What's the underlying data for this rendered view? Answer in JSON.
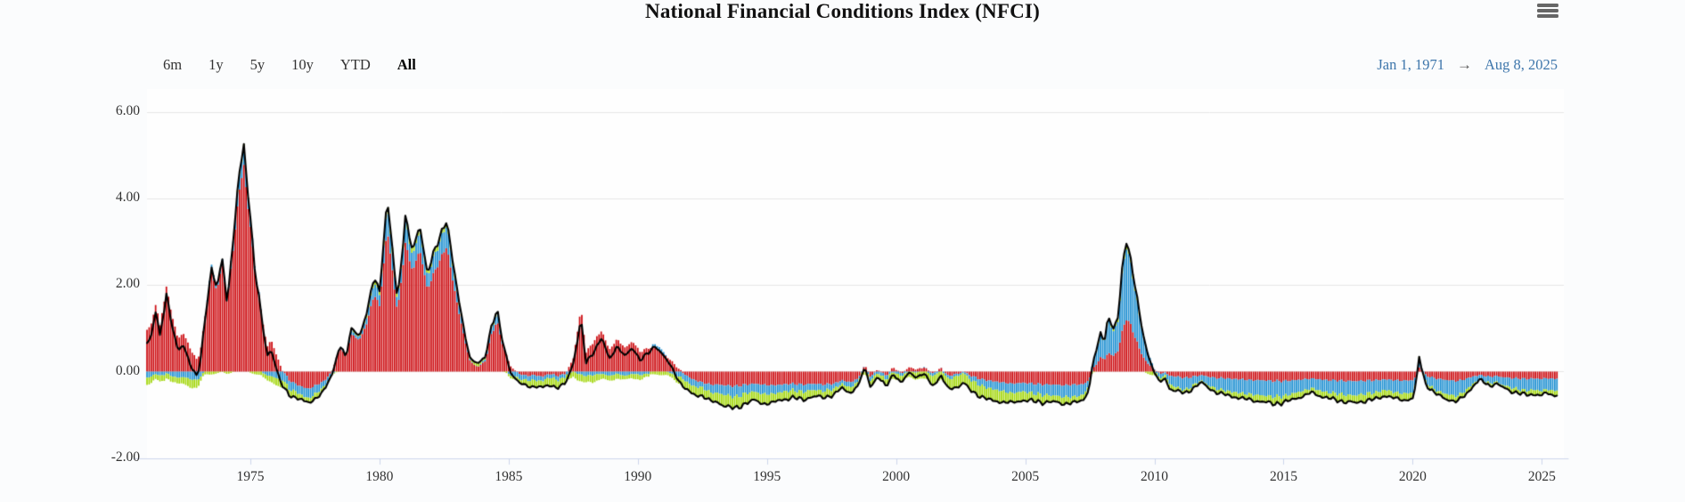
{
  "title": "National Financial Conditions Index (NFCI)",
  "menu": {
    "icon": "hamburger-icon"
  },
  "range_selector": {
    "buttons": [
      {
        "label": "6m",
        "selected": false
      },
      {
        "label": "1y",
        "selected": false
      },
      {
        "label": "5y",
        "selected": false
      },
      {
        "label": "10y",
        "selected": false
      },
      {
        "label": "YTD",
        "selected": false
      },
      {
        "label": "All",
        "selected": true
      }
    ]
  },
  "date_range": {
    "from": "Jan 1, 1971",
    "arrow": "→",
    "to": "Aug 8, 2025"
  },
  "colors": {
    "credit": "#cc0b10",
    "risk": "#1d8fd1",
    "leverage": "#a2d60a",
    "nfci_line": "#000000",
    "gridline": "#e6e6e6",
    "axis_line": "#ccd6eb",
    "label_text": "#333333",
    "date_text": "#3e76ab"
  },
  "chart_data": {
    "type": "area",
    "variant": "stacked-weekly-columns-with-total-line",
    "title": "National Financial Conditions Index (NFCI)",
    "xlabel": "",
    "ylabel": "",
    "legend": "none",
    "grid": true,
    "x_axis": {
      "min": 1971.0,
      "max": 2025.85,
      "tick_labels": [
        "1975",
        "1980",
        "1985",
        "1990",
        "1995",
        "2000",
        "2005",
        "2010",
        "2015",
        "2020",
        "2025"
      ],
      "tick_years": [
        1975,
        1980,
        1985,
        1990,
        1995,
        2000,
        2005,
        2010,
        2015,
        2020,
        2025
      ]
    },
    "y_axis": {
      "min": -2.0,
      "max": 6.42,
      "tick_labels": [
        "6.00",
        "4.00",
        "2.00",
        "0.00",
        "-2.00"
      ],
      "tick_values": [
        6,
        4,
        2,
        0,
        -2
      ]
    },
    "series_order_note": "stacked columns: credit (red) first, then risk (blue), then leverage (green); black line = NFCI total (sum of the three contributions)",
    "components": [
      "credit",
      "risk",
      "leverage"
    ],
    "keypoints_format": [
      "year",
      "credit",
      "risk",
      "leverage"
    ],
    "keypoints": [
      [
        1971.0,
        0.95,
        -0.15,
        -0.15
      ],
      [
        1971.2,
        1.15,
        -0.1,
        -0.15
      ],
      [
        1971.35,
        1.6,
        -0.05,
        -0.12
      ],
      [
        1971.5,
        1.05,
        -0.1,
        -0.15
      ],
      [
        1971.75,
        1.95,
        -0.05,
        -0.1
      ],
      [
        1971.95,
        1.35,
        -0.1,
        -0.12
      ],
      [
        1972.2,
        0.75,
        -0.15,
        -0.15
      ],
      [
        1972.4,
        0.9,
        -0.12,
        -0.15
      ],
      [
        1972.7,
        0.5,
        -0.18,
        -0.18
      ],
      [
        1972.95,
        0.25,
        -0.2,
        -0.2
      ],
      [
        1973.1,
        0.6,
        -0.1,
        -0.1
      ],
      [
        1973.3,
        1.5,
        0.05,
        -0.05
      ],
      [
        1973.5,
        2.3,
        0.15,
        -0.05
      ],
      [
        1973.7,
        1.85,
        0.1,
        -0.05
      ],
      [
        1973.9,
        2.5,
        0.15,
        -0.02
      ],
      [
        1974.1,
        1.6,
        0.05,
        -0.05
      ],
      [
        1974.3,
        2.6,
        0.2,
        0.0
      ],
      [
        1974.55,
        4.1,
        0.35,
        0.05
      ],
      [
        1974.75,
        4.75,
        0.4,
        0.05
      ],
      [
        1974.95,
        3.6,
        0.25,
        0.0
      ],
      [
        1975.2,
        2.2,
        0.1,
        -0.05
      ],
      [
        1975.45,
        1.3,
        0.0,
        -0.1
      ],
      [
        1975.65,
        0.55,
        -0.1,
        -0.12
      ],
      [
        1975.8,
        0.75,
        -0.1,
        -0.12
      ],
      [
        1976.0,
        0.4,
        -0.15,
        -0.15
      ],
      [
        1976.2,
        0.08,
        -0.2,
        -0.18
      ],
      [
        1976.5,
        -0.2,
        -0.2,
        -0.15
      ],
      [
        1976.8,
        -0.3,
        -0.18,
        -0.12
      ],
      [
        1977.0,
        -0.35,
        -0.2,
        -0.1
      ],
      [
        1977.25,
        -0.4,
        -0.22,
        -0.12
      ],
      [
        1977.6,
        -0.3,
        -0.18,
        -0.1
      ],
      [
        1977.9,
        -0.2,
        -0.12,
        -0.08
      ],
      [
        1978.2,
        0.05,
        -0.05,
        -0.02
      ],
      [
        1978.45,
        0.55,
        0.05,
        0.02
      ],
      [
        1978.7,
        0.35,
        0.0,
        0.0
      ],
      [
        1978.95,
        0.9,
        0.1,
        0.05
      ],
      [
        1979.2,
        0.7,
        0.05,
        0.05
      ],
      [
        1979.5,
        1.1,
        0.15,
        0.08
      ],
      [
        1979.8,
        1.8,
        0.3,
        0.1
      ],
      [
        1980.0,
        1.5,
        0.25,
        0.1
      ],
      [
        1980.3,
        3.3,
        0.55,
        0.15
      ],
      [
        1980.7,
        1.35,
        0.2,
        0.08
      ],
      [
        1981.0,
        2.95,
        0.5,
        0.12
      ],
      [
        1981.3,
        2.3,
        0.35,
        0.1
      ],
      [
        1981.55,
        2.85,
        0.45,
        0.12
      ],
      [
        1981.85,
        1.9,
        0.3,
        0.08
      ],
      [
        1982.2,
        2.4,
        0.4,
        0.1
      ],
      [
        1982.6,
        2.9,
        0.5,
        0.12
      ],
      [
        1982.9,
        1.9,
        0.3,
        0.08
      ],
      [
        1983.2,
        1.0,
        0.15,
        0.05
      ],
      [
        1983.5,
        0.25,
        0.02,
        0.05
      ],
      [
        1983.8,
        0.1,
        0.0,
        0.06
      ],
      [
        1984.1,
        0.25,
        0.05,
        0.06
      ],
      [
        1984.35,
        0.9,
        0.15,
        0.05
      ],
      [
        1984.55,
        1.15,
        0.2,
        0.05
      ],
      [
        1984.8,
        0.55,
        0.05,
        0.0
      ],
      [
        1985.1,
        0.1,
        -0.1,
        -0.05
      ],
      [
        1985.4,
        -0.05,
        -0.12,
        -0.1
      ],
      [
        1985.7,
        -0.1,
        -0.1,
        -0.12
      ],
      [
        1986.0,
        -0.08,
        -0.12,
        -0.15
      ],
      [
        1986.3,
        -0.12,
        -0.1,
        -0.15
      ],
      [
        1986.6,
        -0.05,
        -0.08,
        -0.17
      ],
      [
        1986.9,
        -0.1,
        -0.1,
        -0.18
      ],
      [
        1987.2,
        -0.05,
        -0.08,
        -0.15
      ],
      [
        1987.5,
        0.3,
        0.0,
        -0.1
      ],
      [
        1987.8,
        1.45,
        -0.08,
        -0.18
      ],
      [
        1988.0,
        0.45,
        -0.1,
        -0.15
      ],
      [
        1988.3,
        0.7,
        -0.08,
        -0.15
      ],
      [
        1988.6,
        0.95,
        -0.05,
        -0.12
      ],
      [
        1988.9,
        0.5,
        -0.1,
        -0.12
      ],
      [
        1989.2,
        0.75,
        -0.05,
        -0.1
      ],
      [
        1989.5,
        0.55,
        -0.1,
        -0.1
      ],
      [
        1989.8,
        0.7,
        -0.05,
        -0.1
      ],
      [
        1990.1,
        0.45,
        -0.08,
        -0.1
      ],
      [
        1990.4,
        0.55,
        -0.05,
        -0.08
      ],
      [
        1990.7,
        0.55,
        0.1,
        -0.05
      ],
      [
        1991.0,
        0.4,
        0.05,
        -0.08
      ],
      [
        1991.3,
        0.25,
        -0.05,
        -0.1
      ],
      [
        1991.6,
        0.05,
        -0.12,
        -0.15
      ],
      [
        1991.9,
        -0.1,
        -0.15,
        -0.18
      ],
      [
        1992.2,
        -0.2,
        -0.15,
        -0.2
      ],
      [
        1992.5,
        -0.25,
        -0.12,
        -0.18
      ],
      [
        1992.8,
        -0.3,
        -0.18,
        -0.2
      ],
      [
        1993.1,
        -0.3,
        -0.2,
        -0.22
      ],
      [
        1993.4,
        -0.32,
        -0.22,
        -0.25
      ],
      [
        1993.8,
        -0.34,
        -0.25,
        -0.27
      ],
      [
        1994.2,
        -0.3,
        -0.2,
        -0.22
      ],
      [
        1994.5,
        -0.28,
        -0.18,
        -0.2
      ],
      [
        1994.8,
        -0.3,
        -0.22,
        -0.22
      ],
      [
        1995.2,
        -0.32,
        -0.2,
        -0.2
      ],
      [
        1995.6,
        -0.3,
        -0.17,
        -0.18
      ],
      [
        1996.0,
        -0.28,
        -0.15,
        -0.17
      ],
      [
        1996.4,
        -0.3,
        -0.17,
        -0.18
      ],
      [
        1996.8,
        -0.28,
        -0.14,
        -0.15
      ],
      [
        1997.2,
        -0.3,
        -0.15,
        -0.15
      ],
      [
        1997.6,
        -0.28,
        -0.12,
        -0.13
      ],
      [
        1997.9,
        -0.2,
        -0.08,
        -0.1
      ],
      [
        1998.2,
        -0.25,
        -0.12,
        -0.12
      ],
      [
        1998.5,
        -0.18,
        -0.08,
        -0.1
      ],
      [
        1998.8,
        0.15,
        0.02,
        -0.08
      ],
      [
        1999.0,
        -0.12,
        -0.1,
        -0.12
      ],
      [
        1999.3,
        0.05,
        -0.05,
        -0.12
      ],
      [
        1999.6,
        -0.1,
        -0.1,
        -0.15
      ],
      [
        1999.9,
        0.1,
        -0.02,
        -0.12
      ],
      [
        2000.2,
        -0.05,
        -0.08,
        -0.15
      ],
      [
        2000.5,
        0.1,
        0.0,
        -0.12
      ],
      [
        2000.8,
        0.05,
        -0.02,
        -0.15
      ],
      [
        2001.1,
        0.1,
        0.02,
        -0.18
      ],
      [
        2001.4,
        -0.05,
        -0.08,
        -0.2
      ],
      [
        2001.75,
        0.08,
        0.0,
        -0.18
      ],
      [
        2002.0,
        -0.1,
        -0.08,
        -0.22
      ],
      [
        2002.4,
        -0.05,
        -0.05,
        -0.25
      ],
      [
        2002.6,
        0.0,
        -0.03,
        -0.22
      ],
      [
        2002.9,
        -0.1,
        -0.1,
        -0.25
      ],
      [
        2003.3,
        -0.18,
        -0.15,
        -0.25
      ],
      [
        2003.7,
        -0.22,
        -0.18,
        -0.27
      ],
      [
        2004.1,
        -0.25,
        -0.2,
        -0.25
      ],
      [
        2004.5,
        -0.28,
        -0.22,
        -0.22
      ],
      [
        2004.9,
        -0.26,
        -0.2,
        -0.2
      ],
      [
        2005.3,
        -0.28,
        -0.22,
        -0.18
      ],
      [
        2005.7,
        -0.3,
        -0.24,
        -0.17
      ],
      [
        2006.1,
        -0.3,
        -0.25,
        -0.15
      ],
      [
        2006.5,
        -0.32,
        -0.27,
        -0.15
      ],
      [
        2006.9,
        -0.3,
        -0.28,
        -0.14
      ],
      [
        2007.2,
        -0.3,
        -0.25,
        -0.12
      ],
      [
        2007.45,
        -0.22,
        -0.15,
        -0.1
      ],
      [
        2007.6,
        0.05,
        0.15,
        -0.05
      ],
      [
        2007.75,
        0.15,
        0.3,
        0.0
      ],
      [
        2007.9,
        0.35,
        0.55,
        0.05
      ],
      [
        2008.05,
        0.25,
        0.35,
        0.02
      ],
      [
        2008.2,
        0.45,
        0.8,
        0.08
      ],
      [
        2008.4,
        0.35,
        0.55,
        0.05
      ],
      [
        2008.6,
        0.5,
        0.7,
        0.08
      ],
      [
        2008.75,
        0.9,
        1.3,
        0.12
      ],
      [
        2008.9,
        1.25,
        1.7,
        0.15
      ],
      [
        2009.05,
        1.1,
        1.45,
        0.12
      ],
      [
        2009.2,
        0.9,
        1.2,
        0.1
      ],
      [
        2009.4,
        0.55,
        0.8,
        0.05
      ],
      [
        2009.6,
        0.3,
        0.45,
        0.0
      ],
      [
        2009.8,
        0.15,
        0.2,
        -0.05
      ],
      [
        2010.0,
        0.05,
        0.02,
        -0.08
      ],
      [
        2010.2,
        -0.05,
        -0.12,
        -0.1
      ],
      [
        2010.4,
        -0.02,
        -0.05,
        -0.08
      ],
      [
        2010.6,
        -0.1,
        -0.2,
        -0.1
      ],
      [
        2010.9,
        -0.12,
        -0.25,
        -0.08
      ],
      [
        2011.2,
        -0.15,
        -0.28,
        -0.08
      ],
      [
        2011.5,
        -0.12,
        -0.2,
        -0.06
      ],
      [
        2011.8,
        -0.08,
        -0.12,
        -0.05
      ],
      [
        2012.1,
        -0.12,
        -0.2,
        -0.06
      ],
      [
        2012.4,
        -0.15,
        -0.25,
        -0.08
      ],
      [
        2012.7,
        -0.15,
        -0.28,
        -0.1
      ],
      [
        2013.0,
        -0.17,
        -0.3,
        -0.1
      ],
      [
        2013.4,
        -0.18,
        -0.32,
        -0.12
      ],
      [
        2013.8,
        -0.2,
        -0.33,
        -0.13
      ],
      [
        2014.2,
        -0.2,
        -0.35,
        -0.15
      ],
      [
        2014.6,
        -0.22,
        -0.36,
        -0.16
      ],
      [
        2015.0,
        -0.22,
        -0.35,
        -0.15
      ],
      [
        2015.4,
        -0.2,
        -0.3,
        -0.13
      ],
      [
        2015.8,
        -0.18,
        -0.26,
        -0.12
      ],
      [
        2016.1,
        -0.16,
        -0.22,
        -0.1
      ],
      [
        2016.4,
        -0.18,
        -0.26,
        -0.12
      ],
      [
        2016.7,
        -0.2,
        -0.28,
        -0.13
      ],
      [
        2017.0,
        -0.2,
        -0.3,
        -0.15
      ],
      [
        2017.4,
        -0.22,
        -0.32,
        -0.16
      ],
      [
        2017.8,
        -0.22,
        -0.33,
        -0.17
      ],
      [
        2018.2,
        -0.21,
        -0.3,
        -0.16
      ],
      [
        2018.6,
        -0.2,
        -0.28,
        -0.15
      ],
      [
        2018.95,
        -0.18,
        -0.24,
        -0.13
      ],
      [
        2019.3,
        -0.2,
        -0.28,
        -0.14
      ],
      [
        2019.7,
        -0.21,
        -0.3,
        -0.15
      ],
      [
        2020.0,
        -0.2,
        -0.28,
        -0.14
      ],
      [
        2020.15,
        -0.1,
        -0.1,
        -0.05
      ],
      [
        2020.22,
        0.12,
        0.25,
        0.05
      ],
      [
        2020.35,
        0.05,
        0.02,
        0.0
      ],
      [
        2020.5,
        -0.08,
        -0.15,
        -0.05
      ],
      [
        2020.8,
        -0.15,
        -0.25,
        -0.08
      ],
      [
        2021.1,
        -0.18,
        -0.3,
        -0.1
      ],
      [
        2021.4,
        -0.2,
        -0.33,
        -0.12
      ],
      [
        2021.7,
        -0.22,
        -0.35,
        -0.13
      ],
      [
        2022.0,
        -0.18,
        -0.28,
        -0.1
      ],
      [
        2022.3,
        -0.12,
        -0.18,
        -0.06
      ],
      [
        2022.6,
        -0.08,
        -0.08,
        -0.03
      ],
      [
        2022.8,
        -0.1,
        -0.12,
        -0.04
      ],
      [
        2023.0,
        -0.12,
        -0.16,
        -0.05
      ],
      [
        2023.2,
        -0.1,
        -0.13,
        -0.04
      ],
      [
        2023.5,
        -0.13,
        -0.18,
        -0.06
      ],
      [
        2023.8,
        -0.15,
        -0.22,
        -0.08
      ],
      [
        2024.1,
        -0.16,
        -0.25,
        -0.09
      ],
      [
        2024.4,
        -0.17,
        -0.27,
        -0.1
      ],
      [
        2024.7,
        -0.16,
        -0.26,
        -0.1
      ],
      [
        2025.0,
        -0.17,
        -0.28,
        -0.1
      ],
      [
        2025.2,
        -0.15,
        -0.25,
        -0.09
      ],
      [
        2025.4,
        -0.17,
        -0.28,
        -0.1
      ],
      [
        2025.6,
        -0.16,
        -0.27,
        -0.1
      ]
    ],
    "notable_values": {
      "peak_1974": 5.2,
      "peak_1980": 4.0,
      "peak_1981": 3.5,
      "peak_1982": 3.5,
      "spike_1984": 1.4,
      "spike_1987": 1.2,
      "trough_1994": -0.86,
      "peak_2008": 3.1,
      "spike_2020": 0.42,
      "end_aug_2025": -0.53
    }
  }
}
